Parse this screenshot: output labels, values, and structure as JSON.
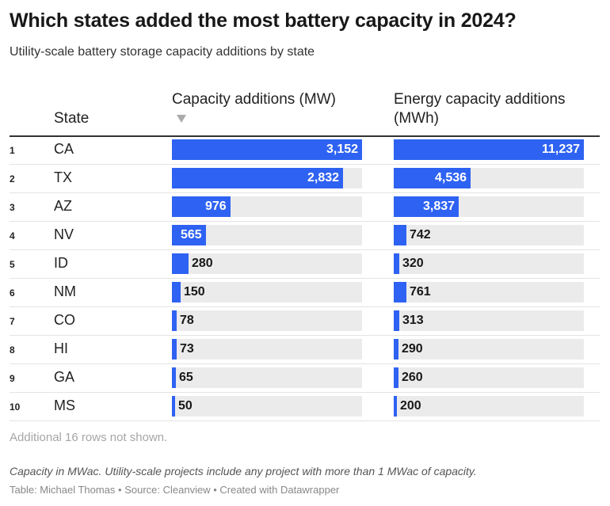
{
  "title": "Which states added the most battery capacity in 2024?",
  "subtitle": "Utility-scale battery storage capacity additions by state",
  "chart_data": {
    "type": "table",
    "title": "Which states added the most battery capacity in 2024?",
    "subtitle": "Utility-scale battery storage capacity additions by state",
    "columns": {
      "state": "State",
      "capacity": "Capacity additions (MW)",
      "energy": "Energy capacity additions (MWh)"
    },
    "sorted_by": "capacity",
    "capacity_max": 3152,
    "energy_max": 11237,
    "rows": [
      {
        "rank": "1",
        "state": "CA",
        "capacity": 3152,
        "capacity_label": "3,152",
        "energy": 11237,
        "energy_label": "11,237"
      },
      {
        "rank": "2",
        "state": "TX",
        "capacity": 2832,
        "capacity_label": "2,832",
        "energy": 4536,
        "energy_label": "4,536"
      },
      {
        "rank": "3",
        "state": "AZ",
        "capacity": 976,
        "capacity_label": "976",
        "energy": 3837,
        "energy_label": "3,837"
      },
      {
        "rank": "4",
        "state": "NV",
        "capacity": 565,
        "capacity_label": "565",
        "energy": 742,
        "energy_label": "742"
      },
      {
        "rank": "5",
        "state": "ID",
        "capacity": 280,
        "capacity_label": "280",
        "energy": 320,
        "energy_label": "320"
      },
      {
        "rank": "6",
        "state": "NM",
        "capacity": 150,
        "capacity_label": "150",
        "energy": 761,
        "energy_label": "761"
      },
      {
        "rank": "7",
        "state": "CO",
        "capacity": 78,
        "capacity_label": "78",
        "energy": 313,
        "energy_label": "313"
      },
      {
        "rank": "8",
        "state": "HI",
        "capacity": 73,
        "capacity_label": "73",
        "energy": 290,
        "energy_label": "290"
      },
      {
        "rank": "9",
        "state": "GA",
        "capacity": 65,
        "capacity_label": "65",
        "energy": 260,
        "energy_label": "260"
      },
      {
        "rank": "10",
        "state": "MS",
        "capacity": 50,
        "capacity_label": "50",
        "energy": 200,
        "energy_label": "200"
      }
    ]
  },
  "hidden_rows_note": "Additional 16 rows not shown.",
  "notes": "Capacity in MWac. Utility-scale projects include any project with more than 1 MWac of capacity.",
  "credit": "Table: Michael Thomas • Source: Cleanview • Created with Datawrapper",
  "colors": {
    "bar": "#2e62f2",
    "track": "#ebebeb",
    "label_inside": "#ffffff",
    "label_outside": "#181818"
  }
}
